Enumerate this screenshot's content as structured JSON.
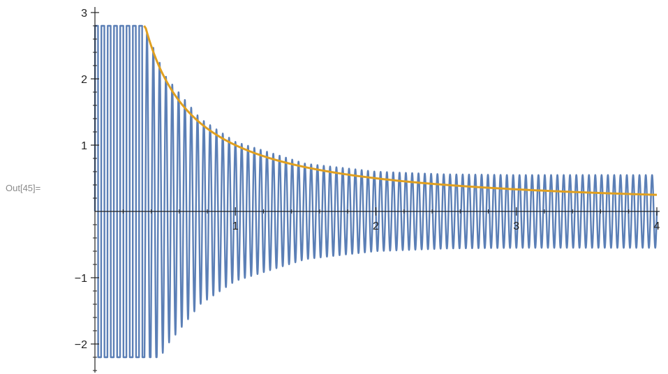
{
  "cell": {
    "out_label": "Out[45]="
  },
  "chart_data": {
    "type": "line",
    "title": "",
    "xlabel": "",
    "ylabel": "",
    "xlim": [
      0,
      4
    ],
    "ylim": [
      -2.45,
      3.0
    ],
    "clip": [
      -2.2,
      2.8
    ],
    "grid": false,
    "x_ticks": [
      {
        "value": 1,
        "label": "1"
      },
      {
        "value": 2,
        "label": "2"
      },
      {
        "value": 3,
        "label": "3"
      },
      {
        "value": 4,
        "label": "4"
      }
    ],
    "y_ticks": [
      {
        "value": 3,
        "label": "3"
      },
      {
        "value": 2,
        "label": "2"
      },
      {
        "value": 1,
        "label": "1"
      },
      {
        "value": -1,
        "label": "−1"
      },
      {
        "value": -2,
        "label": "−2"
      }
    ],
    "series": [
      {
        "kind": "oscillation",
        "color": "#5b7fb6",
        "amplitude_rule": "amplitude ≈ 1/x decaying to ≈ 0.55, clipped at y = 2.8 and y = -2.2",
        "cycles": 89,
        "envelope": [
          [
            0.35,
            2.8
          ],
          [
            0.5,
            2.05
          ],
          [
            0.75,
            1.4
          ],
          [
            1.0,
            1.05
          ],
          [
            1.5,
            0.72
          ],
          [
            2.0,
            0.6
          ],
          [
            2.5,
            0.56
          ],
          [
            3.0,
            0.55
          ],
          [
            4.0,
            0.55
          ]
        ]
      },
      {
        "kind": "curve",
        "color": "#e0a020",
        "x": [
          0.35,
          0.4,
          0.5,
          0.6,
          0.75,
          1.0,
          1.25,
          1.5,
          2.0,
          2.5,
          3.0,
          3.5,
          4.0
        ],
        "y": [
          2.8,
          2.5,
          2.0,
          1.67,
          1.33,
          1.0,
          0.8,
          0.67,
          0.5,
          0.4,
          0.33,
          0.29,
          0.25
        ]
      }
    ]
  }
}
